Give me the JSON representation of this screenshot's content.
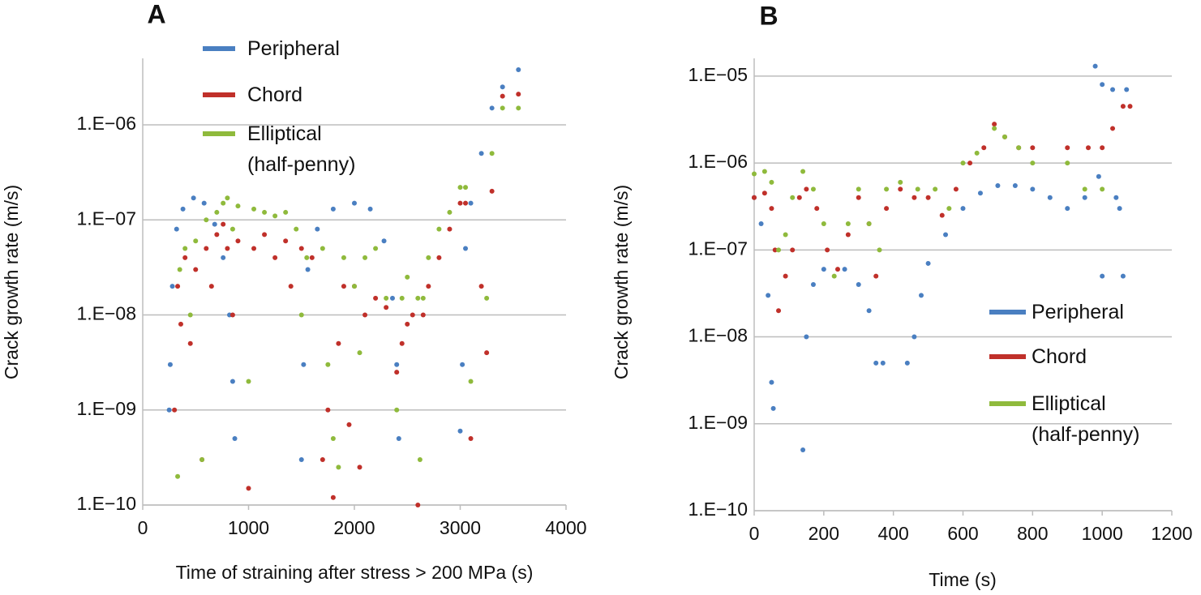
{
  "chart_data": [
    {
      "type": "scatter",
      "label": "A",
      "x_label": "Time of straining after stress > 200 MPa (s)",
      "y_label": "Crack growth rate (m/s)",
      "log_y": true,
      "grid": true,
      "xlim": [
        0,
        4000
      ],
      "xticks": [
        0,
        1000,
        2000,
        3000,
        4000
      ],
      "ylim": [
        1e-10,
        5e-06
      ],
      "yticks": [
        {
          "value": 1e-10,
          "label": "1.E−10"
        },
        {
          "value": 1e-09,
          "label": "1.E−09"
        },
        {
          "value": 1e-08,
          "label": "1.E−08"
        },
        {
          "value": 1e-07,
          "label": "1.E−07"
        },
        {
          "value": 1e-06,
          "label": "1.E−06"
        }
      ],
      "series": [
        {
          "name": "Peripheral",
          "color": "#4a7fc1",
          "x": [
            250,
            260,
            280,
            320,
            380,
            480,
            580,
            680,
            760,
            820,
            850,
            870,
            1500,
            1520,
            1560,
            1650,
            1800,
            2000,
            2150,
            2280,
            2360,
            2400,
            2420,
            3000,
            3020,
            3050,
            3100,
            3200,
            3300,
            3400,
            3550
          ],
          "values": [
            1e-09,
            3e-09,
            2e-08,
            8e-08,
            1.3e-07,
            1.7e-07,
            1.5e-07,
            9e-08,
            4e-08,
            1e-08,
            2e-09,
            5e-10,
            3e-10,
            3e-09,
            3e-08,
            8e-08,
            1.3e-07,
            1.5e-07,
            1.3e-07,
            6e-08,
            1.5e-08,
            3e-09,
            5e-10,
            6e-10,
            3e-09,
            5e-08,
            1.5e-07,
            5e-07,
            1.5e-06,
            2.5e-06,
            3.8e-06
          ]
        },
        {
          "name": "Chord",
          "color": "#c0302a",
          "x": [
            300,
            330,
            360,
            400,
            450,
            500,
            560,
            600,
            650,
            700,
            760,
            800,
            850,
            900,
            1000,
            1050,
            1150,
            1250,
            1350,
            1400,
            1500,
            1600,
            1700,
            1750,
            1800,
            1850,
            1900,
            1950,
            2000,
            2050,
            2100,
            2200,
            2300,
            2400,
            2450,
            2500,
            2550,
            2600,
            2650,
            2700,
            2800,
            2900,
            3000,
            3050,
            3100,
            3200,
            3250,
            3300,
            3400,
            3550
          ],
          "values": [
            1e-09,
            2e-08,
            8e-09,
            4e-08,
            5e-09,
            3e-08,
            3e-10,
            5e-08,
            2e-08,
            7e-08,
            9e-08,
            5e-08,
            1e-08,
            6e-08,
            1.5e-10,
            5e-08,
            7e-08,
            4e-08,
            6e-08,
            2e-08,
            5e-08,
            4e-08,
            3e-10,
            1e-09,
            1.2e-10,
            5e-09,
            2e-08,
            7e-10,
            2e-08,
            2.5e-10,
            1e-08,
            1.5e-08,
            1.2e-08,
            2.5e-09,
            5e-09,
            8e-09,
            1e-08,
            1e-10,
            1e-08,
            2e-08,
            4e-08,
            8e-08,
            1.5e-07,
            1.5e-07,
            5e-10,
            2e-08,
            4e-09,
            2e-07,
            2e-06,
            2.1e-06
          ]
        },
        {
          "name": "Elliptical\n(half-penny)",
          "color": "#8fba3c",
          "x": [
            330,
            350,
            400,
            450,
            500,
            560,
            600,
            700,
            760,
            800,
            850,
            900,
            1000,
            1050,
            1150,
            1250,
            1350,
            1450,
            1500,
            1550,
            1700,
            1750,
            1800,
            1850,
            1900,
            2000,
            2050,
            2100,
            2200,
            2300,
            2400,
            2450,
            2500,
            2600,
            2620,
            2650,
            2700,
            2800,
            2900,
            3000,
            3050,
            3100,
            3250,
            3300,
            3400,
            3550
          ],
          "values": [
            2e-10,
            3e-08,
            5e-08,
            1e-08,
            6e-08,
            3e-10,
            1e-07,
            1.2e-07,
            1.5e-07,
            1.7e-07,
            8e-08,
            1.4e-07,
            2e-09,
            1.3e-07,
            1.2e-07,
            1.1e-07,
            1.2e-07,
            8e-08,
            1e-08,
            4e-08,
            5e-08,
            3e-09,
            5e-10,
            2.5e-10,
            4e-08,
            2e-08,
            4e-09,
            4e-08,
            5e-08,
            1.5e-08,
            1e-09,
            1.5e-08,
            2.5e-08,
            1.5e-08,
            3e-10,
            1.5e-08,
            4e-08,
            8e-08,
            1.2e-07,
            2.2e-07,
            2.2e-07,
            2e-09,
            1.5e-08,
            5e-07,
            1.5e-06,
            1.5e-06
          ]
        }
      ]
    },
    {
      "type": "scatter",
      "label": "B",
      "x_label": "Time (s)",
      "y_label": "Crack growth rate (m/s)",
      "log_y": true,
      "grid": true,
      "xlim": [
        0,
        1200
      ],
      "xticks": [
        0,
        200,
        400,
        600,
        800,
        1000,
        1200
      ],
      "ylim": [
        1e-10,
        1.6e-05
      ],
      "yticks": [
        {
          "value": 1e-10,
          "label": "1.E−10"
        },
        {
          "value": 1e-09,
          "label": "1.E−09"
        },
        {
          "value": 1e-08,
          "label": "1.E−08"
        },
        {
          "value": 1e-07,
          "label": "1.E−07"
        },
        {
          "value": 1e-06,
          "label": "1.E−06"
        },
        {
          "value": 1e-05,
          "label": "1.E−05"
        }
      ],
      "series": [
        {
          "name": "Peripheral",
          "color": "#4a7fc1",
          "x": [
            0,
            20,
            40,
            50,
            55,
            140,
            150,
            170,
            200,
            260,
            300,
            330,
            350,
            370,
            440,
            460,
            480,
            500,
            550,
            600,
            650,
            700,
            750,
            800,
            850,
            900,
            950,
            980,
            990,
            1000,
            1000,
            1030,
            1040,
            1050,
            1060,
            1070
          ],
          "values": [
            4e-07,
            2e-07,
            3e-08,
            3e-09,
            1.5e-09,
            5e-10,
            1e-08,
            4e-08,
            6e-08,
            6e-08,
            4e-08,
            2e-08,
            5e-09,
            5e-09,
            5e-09,
            1e-08,
            3e-08,
            7e-08,
            1.5e-07,
            3e-07,
            4.5e-07,
            5.5e-07,
            5.5e-07,
            5e-07,
            4e-07,
            3e-07,
            4e-07,
            1.3e-05,
            7e-07,
            8e-06,
            5e-08,
            7e-06,
            4e-07,
            3e-07,
            5e-08,
            7e-06
          ]
        },
        {
          "name": "Chord",
          "color": "#c0302a",
          "x": [
            0,
            30,
            50,
            60,
            70,
            90,
            110,
            130,
            150,
            180,
            210,
            240,
            270,
            300,
            330,
            350,
            380,
            420,
            460,
            500,
            540,
            580,
            620,
            660,
            690,
            720,
            760,
            800,
            900,
            960,
            1000,
            1030,
            1060,
            1080
          ],
          "values": [
            4e-07,
            4.5e-07,
            3e-07,
            1e-07,
            2e-08,
            5e-08,
            1e-07,
            4e-07,
            5e-07,
            3e-07,
            1e-07,
            6e-08,
            1.5e-07,
            4e-07,
            2e-07,
            5e-08,
            3e-07,
            5e-07,
            4e-07,
            4e-07,
            2.5e-07,
            5e-07,
            1e-06,
            1.5e-06,
            2.8e-06,
            2e-06,
            1.5e-06,
            1.5e-06,
            1.5e-06,
            1.5e-06,
            1.5e-06,
            2.5e-06,
            4.5e-06,
            4.5e-06
          ]
        },
        {
          "name": "Elliptical\n(half-penny)",
          "color": "#8fba3c",
          "x": [
            0,
            30,
            50,
            70,
            90,
            110,
            140,
            170,
            200,
            230,
            270,
            300,
            330,
            360,
            380,
            420,
            470,
            520,
            560,
            600,
            640,
            690,
            720,
            760,
            800,
            900,
            950,
            1000
          ],
          "values": [
            7.5e-07,
            8e-07,
            6e-07,
            1e-07,
            1.5e-07,
            4e-07,
            8e-07,
            5e-07,
            2e-07,
            5e-08,
            2e-07,
            5e-07,
            2e-07,
            1e-07,
            5e-07,
            6e-07,
            5e-07,
            5e-07,
            3e-07,
            1e-06,
            1.3e-06,
            2.5e-06,
            2e-06,
            1.5e-06,
            1e-06,
            1e-06,
            5e-07,
            5e-07
          ]
        }
      ]
    }
  ]
}
